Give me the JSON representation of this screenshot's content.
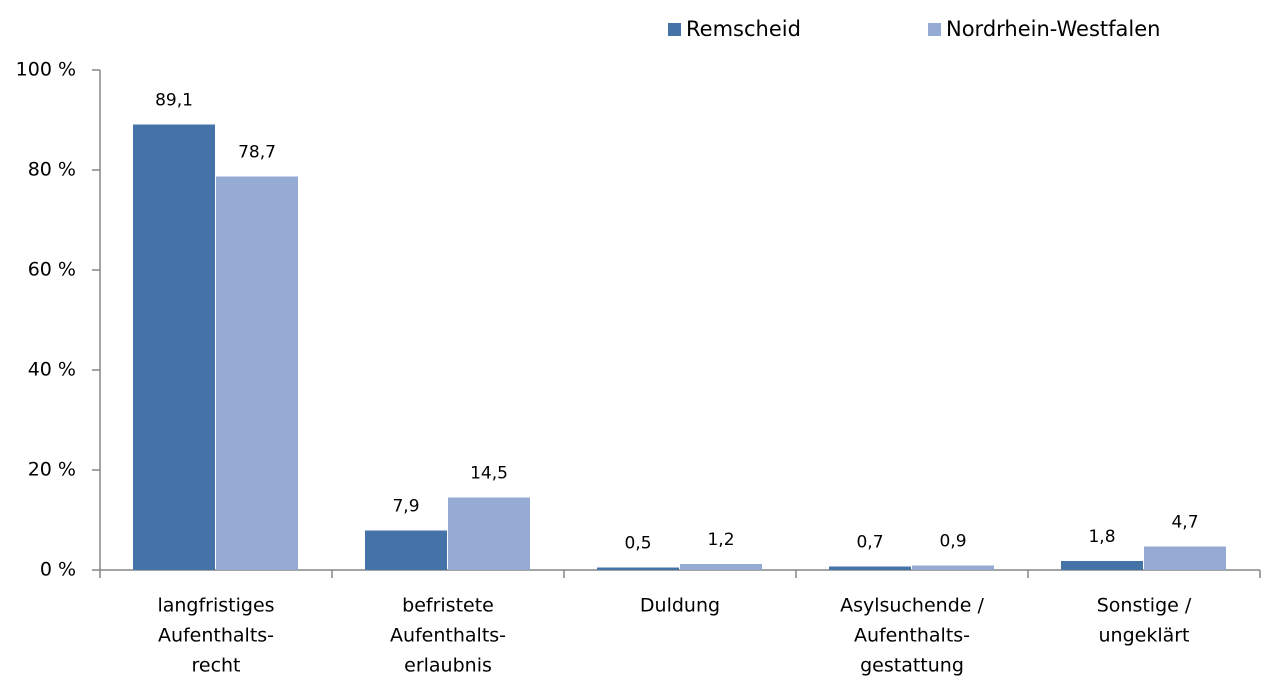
{
  "chart_data": {
    "type": "bar",
    "categories": [
      [
        "langfristiges",
        "Aufenthalts-",
        "recht"
      ],
      [
        "befristete",
        "Aufenthalts-",
        "erlaubnis"
      ],
      [
        "Duldung"
      ],
      [
        "Asylsuchende /",
        "Aufenthalts-",
        "gestattung"
      ],
      [
        "Sonstige /",
        "ungeklärt"
      ]
    ],
    "series": [
      {
        "name": "Remscheid",
        "color": "#4573a7",
        "values": [
          89.1,
          7.9,
          0.5,
          0.7,
          1.8
        ],
        "value_labels": [
          "89,1",
          "7,9",
          "0,5",
          "0,7",
          "1,8"
        ]
      },
      {
        "name": "Nordrhein-Westfalen",
        "color": "#95abd3",
        "values": [
          78.7,
          14.5,
          1.2,
          0.9,
          4.7
        ],
        "value_labels": [
          "78,7",
          "14,5",
          "1,2",
          "0,9",
          "4,7"
        ]
      }
    ],
    "ylim": [
      0,
      100
    ],
    "yticks": [
      {
        "value": 0,
        "label": "0 %"
      },
      {
        "value": 20,
        "label": "20 %"
      },
      {
        "value": 40,
        "label": "40 %"
      },
      {
        "value": 60,
        "label": "60 %"
      },
      {
        "value": 80,
        "label": "80 %"
      },
      {
        "value": 100,
        "label": "100 %"
      }
    ],
    "legend": "top-right"
  }
}
